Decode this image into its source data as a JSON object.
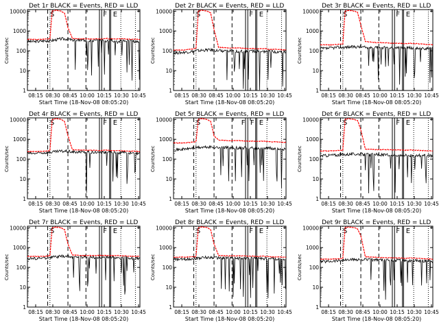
{
  "figure": {
    "xlabel": "Start Time (18-Nov-08 08:05:20)",
    "ylabel": "Counts/sec",
    "x_ticks": [
      "08:15",
      "08:30",
      "08:45",
      "10:00",
      "10:15",
      "10:30",
      "10:45"
    ],
    "y_ticks": [
      "1",
      "10",
      "100",
      "1000",
      "10000"
    ],
    "colors": {
      "events": "#000000",
      "lld": "#ff0000",
      "background": "#ffffff"
    }
  },
  "chart_data": [
    {
      "type": "line",
      "title": "Det 1r BLACK = Events, RED = LLD",
      "xlabel": "Start Time (18-Nov-08 08:05:20)",
      "ylabel": "Counts/sec",
      "y_scale": "log",
      "ylim": [
        1,
        12000
      ],
      "x_units": "minutes since start",
      "xlim": [
        0,
        100
      ],
      "markers": [
        "S",
        "F",
        "E"
      ],
      "series": [
        {
          "name": "Events",
          "color": "#000000",
          "x": [
            0,
            5,
            10,
            15,
            20,
            30,
            35,
            40,
            50,
            60,
            65,
            70,
            75,
            80,
            85,
            90,
            95,
            100
          ],
          "values": [
            300,
            290,
            300,
            320,
            320,
            400,
            400,
            350,
            350,
            330,
            350,
            320,
            360,
            280,
            340,
            320,
            300,
            300
          ]
        },
        {
          "name": "LLD",
          "color": "#ff0000",
          "x": [
            0,
            5,
            10,
            15,
            20,
            22,
            25,
            30,
            33,
            36,
            40,
            50,
            60,
            65,
            70,
            75,
            80,
            85,
            90,
            95,
            100
          ],
          "values": [
            380,
            380,
            380,
            390,
            400,
            10000,
            11000,
            10000,
            8000,
            1500,
            420,
            400,
            400,
            400,
            420,
            400,
            400,
            400,
            390,
            380,
            380
          ]
        }
      ]
    },
    {
      "type": "line",
      "title": "Det 2r BLACK = Events, RED = LLD",
      "xlabel": "Start Time (18-Nov-08 08:05:20)",
      "ylabel": "Counts/sec",
      "y_scale": "log",
      "ylim": [
        1,
        12000
      ],
      "x_units": "minutes since start",
      "xlim": [
        0,
        100
      ],
      "markers": [
        "S",
        "F",
        "E"
      ],
      "series": [
        {
          "name": "Events",
          "color": "#000000",
          "x": [
            0,
            5,
            10,
            15,
            20,
            30,
            35,
            40,
            50,
            60,
            65,
            70,
            75,
            80,
            85,
            90,
            95,
            100
          ],
          "values": [
            80,
            80,
            85,
            90,
            100,
            110,
            110,
            100,
            100,
            95,
            95,
            100,
            95,
            90,
            95,
            90,
            90,
            85
          ]
        },
        {
          "name": "LLD",
          "color": "#ff0000",
          "x": [
            0,
            5,
            10,
            15,
            20,
            22,
            25,
            30,
            33,
            36,
            40,
            50,
            60,
            65,
            70,
            75,
            80,
            85,
            90,
            95,
            100
          ],
          "values": [
            110,
            110,
            110,
            120,
            130,
            10000,
            11000,
            10000,
            8000,
            1200,
            150,
            140,
            140,
            130,
            130,
            125,
            130,
            120,
            120,
            115,
            110
          ]
        }
      ]
    },
    {
      "type": "line",
      "title": "Det 3r BLACK = Events, RED = LLD",
      "xlabel": "Start Time (18-Nov-08 08:05:20)",
      "ylabel": "Counts/sec",
      "y_scale": "log",
      "ylim": [
        1,
        12000
      ],
      "x_units": "minutes since start",
      "xlim": [
        0,
        100
      ],
      "markers": [
        "S",
        "F",
        "E"
      ],
      "series": [
        {
          "name": "Events",
          "color": "#000000",
          "x": [
            0,
            5,
            10,
            15,
            20,
            30,
            35,
            40,
            50,
            60,
            65,
            70,
            75,
            80,
            85,
            90,
            95,
            100
          ],
          "values": [
            130,
            130,
            140,
            150,
            150,
            160,
            160,
            150,
            150,
            140,
            140,
            150,
            145,
            140,
            140,
            135,
            130,
            130
          ]
        },
        {
          "name": "LLD",
          "color": "#ff0000",
          "x": [
            0,
            5,
            10,
            15,
            20,
            22,
            25,
            30,
            33,
            36,
            40,
            50,
            60,
            65,
            70,
            75,
            80,
            85,
            90,
            95,
            100
          ],
          "values": [
            200,
            200,
            200,
            210,
            220,
            10000,
            11000,
            10000,
            9000,
            2000,
            300,
            260,
            250,
            240,
            240,
            230,
            240,
            230,
            220,
            210,
            200
          ]
        }
      ]
    },
    {
      "type": "line",
      "title": "Det 4r BLACK = Events, RED = LLD",
      "xlabel": "Start Time (18-Nov-08 08:05:20)",
      "ylabel": "Counts/sec",
      "y_scale": "log",
      "ylim": [
        1,
        12000
      ],
      "x_units": "minutes since start",
      "xlim": [
        0,
        100
      ],
      "markers": [
        "S",
        "F",
        "E"
      ],
      "series": [
        {
          "name": "Events",
          "color": "#000000",
          "x": [
            0,
            5,
            10,
            15,
            20,
            30,
            35,
            40,
            50,
            60,
            65,
            70,
            75,
            80,
            85,
            90,
            95,
            100
          ],
          "values": [
            200,
            190,
            200,
            210,
            220,
            250,
            250,
            230,
            230,
            220,
            230,
            210,
            240,
            200,
            220,
            210,
            200,
            200
          ]
        },
        {
          "name": "LLD",
          "color": "#ff0000",
          "x": [
            0,
            5,
            10,
            15,
            20,
            22,
            25,
            30,
            33,
            36,
            40,
            50,
            60,
            65,
            70,
            75,
            80,
            85,
            90,
            95,
            100
          ],
          "values": [
            240,
            240,
            240,
            250,
            260,
            10000,
            11000,
            10000,
            8000,
            1500,
            300,
            280,
            280,
            270,
            280,
            270,
            270,
            260,
            250,
            250,
            240
          ]
        }
      ]
    },
    {
      "type": "line",
      "title": "Det 5r BLACK = Events, RED = LLD",
      "xlabel": "Start Time (18-Nov-08 08:05:20)",
      "ylabel": "Counts/sec",
      "y_scale": "log",
      "ylim": [
        1,
        12000
      ],
      "x_units": "minutes since start",
      "xlim": [
        0,
        100
      ],
      "markers": [
        "S",
        "F",
        "F",
        "E"
      ],
      "series": [
        {
          "name": "Events",
          "color": "#000000",
          "x": [
            0,
            5,
            10,
            15,
            20,
            30,
            35,
            40,
            50,
            60,
            65,
            70,
            75,
            80,
            85,
            90,
            95,
            100
          ],
          "values": [
            300,
            300,
            320,
            350,
            380,
            400,
            400,
            380,
            380,
            370,
            370,
            380,
            360,
            350,
            360,
            340,
            330,
            320
          ]
        },
        {
          "name": "LLD",
          "color": "#ff0000",
          "x": [
            0,
            5,
            10,
            15,
            20,
            22,
            25,
            30,
            33,
            36,
            40,
            50,
            60,
            65,
            70,
            75,
            80,
            85,
            90,
            95,
            100
          ],
          "values": [
            650,
            650,
            650,
            700,
            750,
            10000,
            11000,
            10000,
            8000,
            1500,
            900,
            850,
            850,
            800,
            800,
            780,
            800,
            760,
            740,
            720,
            700
          ]
        }
      ]
    },
    {
      "type": "line",
      "title": "Det 6r BLACK = Events, RED = LLD",
      "xlabel": "Start Time (18-Nov-08 08:05:20)",
      "ylabel": "Counts/sec",
      "y_scale": "log",
      "ylim": [
        1,
        12000
      ],
      "x_units": "minutes since start",
      "xlim": [
        0,
        100
      ],
      "markers": [
        "S",
        "F",
        "E"
      ],
      "series": [
        {
          "name": "Events",
          "color": "#000000",
          "x": [
            0,
            5,
            10,
            15,
            20,
            30,
            35,
            40,
            50,
            60,
            65,
            70,
            75,
            80,
            85,
            90,
            95,
            100
          ],
          "values": [
            150,
            150,
            160,
            160,
            170,
            180,
            180,
            170,
            170,
            160,
            165,
            160,
            160,
            155,
            160,
            150,
            150,
            150
          ]
        },
        {
          "name": "LLD",
          "color": "#ff0000",
          "x": [
            0,
            5,
            10,
            15,
            20,
            22,
            25,
            30,
            33,
            36,
            40,
            50,
            60,
            65,
            70,
            75,
            80,
            85,
            90,
            95,
            100
          ],
          "values": [
            260,
            260,
            260,
            270,
            280,
            10000,
            11000,
            10000,
            9000,
            3000,
            320,
            300,
            300,
            290,
            290,
            280,
            290,
            280,
            270,
            270,
            260
          ]
        }
      ]
    },
    {
      "type": "line",
      "title": "Det 7r BLACK = Events, RED = LLD",
      "xlabel": "Start Time (18-Nov-08 08:05:20)",
      "ylabel": "Counts/sec",
      "y_scale": "log",
      "ylim": [
        1,
        12000
      ],
      "x_units": "minutes since start",
      "xlim": [
        0,
        100
      ],
      "markers": [
        "S",
        "F",
        "E"
      ],
      "series": [
        {
          "name": "Events",
          "color": "#000000",
          "x": [
            0,
            5,
            10,
            15,
            20,
            30,
            35,
            40,
            50,
            60,
            65,
            70,
            75,
            80,
            85,
            90,
            95,
            100
          ],
          "values": [
            280,
            280,
            290,
            300,
            320,
            360,
            360,
            340,
            340,
            320,
            330,
            320,
            330,
            300,
            320,
            300,
            290,
            280
          ]
        },
        {
          "name": "LLD",
          "color": "#ff0000",
          "x": [
            0,
            5,
            10,
            15,
            20,
            22,
            25,
            30,
            33,
            36,
            40,
            50,
            60,
            65,
            70,
            75,
            80,
            85,
            90,
            95,
            100
          ],
          "values": [
            360,
            360,
            360,
            370,
            380,
            10000,
            11000,
            10000,
            8000,
            1500,
            420,
            400,
            400,
            400,
            400,
            390,
            400,
            380,
            370,
            360,
            360
          ]
        }
      ]
    },
    {
      "type": "line",
      "title": "Det 8r BLACK = Events, RED = LLD",
      "xlabel": "Start Time (18-Nov-08 08:05:20)",
      "ylabel": "Counts/sec",
      "y_scale": "log",
      "ylim": [
        1,
        12000
      ],
      "x_units": "minutes since start",
      "xlim": [
        0,
        100
      ],
      "markers": [
        "S",
        "F",
        "E"
      ],
      "series": [
        {
          "name": "Events",
          "color": "#000000",
          "x": [
            0,
            5,
            10,
            15,
            20,
            30,
            35,
            40,
            50,
            60,
            65,
            70,
            75,
            80,
            85,
            90,
            95,
            100
          ],
          "values": [
            250,
            250,
            260,
            270,
            290,
            320,
            320,
            300,
            300,
            290,
            290,
            300,
            290,
            270,
            280,
            270,
            260,
            250
          ]
        },
        {
          "name": "LLD",
          "color": "#ff0000",
          "x": [
            0,
            5,
            10,
            15,
            20,
            22,
            25,
            30,
            33,
            36,
            40,
            50,
            60,
            65,
            70,
            75,
            80,
            85,
            90,
            95,
            100
          ],
          "values": [
            330,
            330,
            330,
            340,
            350,
            10000,
            11000,
            10000,
            8000,
            1500,
            400,
            380,
            380,
            370,
            370,
            360,
            370,
            350,
            340,
            340,
            330
          ]
        }
      ]
    },
    {
      "type": "line",
      "title": "Det 9r BLACK = Events, RED = LLD",
      "xlabel": "Start Time (18-Nov-08 08:05:20)",
      "ylabel": "Counts/sec",
      "y_scale": "log",
      "ylim": [
        1,
        12000
      ],
      "x_units": "minutes since start",
      "xlim": [
        0,
        100
      ],
      "markers": [
        "S",
        "F",
        "E"
      ],
      "series": [
        {
          "name": "Events",
          "color": "#000000",
          "x": [
            0,
            5,
            10,
            15,
            20,
            30,
            35,
            40,
            50,
            60,
            65,
            70,
            75,
            80,
            85,
            90,
            95,
            100
          ],
          "values": [
            200,
            200,
            210,
            220,
            230,
            250,
            250,
            240,
            240,
            230,
            230,
            240,
            230,
            220,
            220,
            210,
            210,
            200
          ]
        },
        {
          "name": "LLD",
          "color": "#ff0000",
          "x": [
            0,
            5,
            10,
            15,
            20,
            22,
            25,
            30,
            33,
            36,
            40,
            50,
            60,
            65,
            70,
            75,
            80,
            85,
            90,
            95,
            100
          ],
          "values": [
            260,
            260,
            260,
            270,
            280,
            10000,
            11000,
            10000,
            9000,
            4000,
            340,
            320,
            310,
            300,
            300,
            290,
            300,
            290,
            280,
            270,
            260
          ]
        }
      ]
    }
  ]
}
